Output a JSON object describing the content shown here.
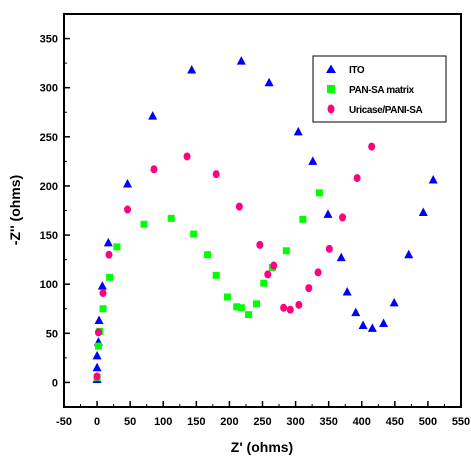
{
  "chart_data": {
    "type": "scatter",
    "xlabel": "Z' (ohms)",
    "ylabel": "-Z'' (ohms)",
    "xlim": [
      -50,
      550
    ],
    "ylim": [
      -25,
      375
    ],
    "xticks": [
      -50,
      0,
      50,
      100,
      150,
      200,
      250,
      300,
      350,
      400,
      450,
      500,
      550
    ],
    "yticks": [
      0,
      50,
      100,
      150,
      200,
      250,
      300,
      350
    ],
    "legend_position": "top-right",
    "series": [
      {
        "name": "ITO",
        "marker": "triangle",
        "color": "#0000ff",
        "points": [
          [
            0,
            3
          ],
          [
            0,
            15
          ],
          [
            0,
            27
          ],
          [
            2,
            41
          ],
          [
            3,
            63
          ],
          [
            8,
            98
          ],
          [
            17,
            142
          ],
          [
            46,
            202
          ],
          [
            84,
            271
          ],
          [
            143,
            318
          ],
          [
            218,
            327
          ],
          [
            260,
            305
          ],
          [
            304,
            255
          ],
          [
            326,
            225
          ],
          [
            349,
            171
          ],
          [
            369,
            127
          ],
          [
            378,
            92
          ],
          [
            391,
            71
          ],
          [
            402,
            58
          ],
          [
            416,
            55
          ],
          [
            433,
            60
          ],
          [
            449,
            81
          ],
          [
            471,
            130
          ],
          [
            493,
            173
          ],
          [
            508,
            206
          ]
        ]
      },
      {
        "name": "PAN-SA matrix",
        "marker": "square",
        "color": "#00ff00",
        "points": [
          [
            0,
            5
          ],
          [
            2,
            37
          ],
          [
            4,
            52
          ],
          [
            9,
            75
          ],
          [
            19,
            107
          ],
          [
            30,
            138
          ],
          [
            71,
            161
          ],
          [
            112,
            167
          ],
          [
            146,
            151
          ],
          [
            167,
            130
          ],
          [
            180,
            109
          ],
          [
            197,
            87
          ],
          [
            211,
            77
          ],
          [
            218,
            76
          ],
          [
            229,
            69
          ],
          [
            241,
            80
          ],
          [
            252,
            101
          ],
          [
            265,
            117
          ],
          [
            286,
            134
          ],
          [
            311,
            166
          ],
          [
            336,
            193
          ]
        ]
      },
      {
        "name": "Uricase/PANI-SA",
        "marker": "circle",
        "color": "#ff0080",
        "points": [
          [
            0,
            6
          ],
          [
            2,
            51
          ],
          [
            9,
            91
          ],
          [
            18,
            130
          ],
          [
            46,
            176
          ],
          [
            86,
            217
          ],
          [
            136,
            230
          ],
          [
            180,
            212
          ],
          [
            215,
            179
          ],
          [
            246,
            140
          ],
          [
            258,
            110
          ],
          [
            267,
            119
          ],
          [
            282,
            76
          ],
          [
            292,
            74
          ],
          [
            305,
            79
          ],
          [
            320,
            96
          ],
          [
            334,
            112
          ],
          [
            351,
            136
          ],
          [
            371,
            168
          ],
          [
            393,
            208
          ],
          [
            415,
            240
          ]
        ]
      }
    ]
  }
}
